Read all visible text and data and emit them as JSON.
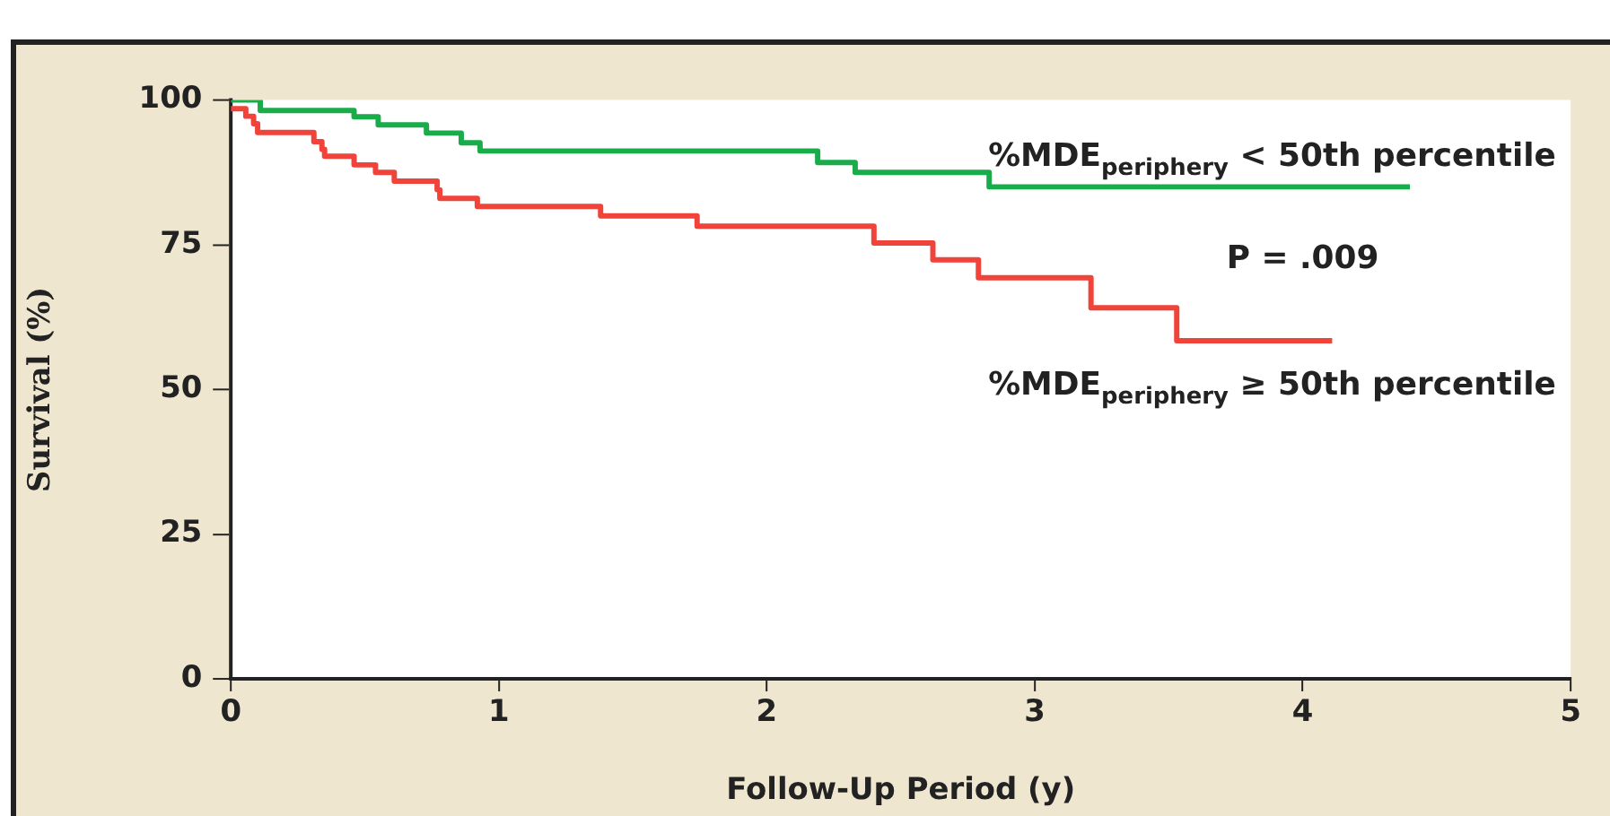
{
  "chart_data": {
    "type": "step",
    "xlabel": "Follow-Up Period (y)",
    "ylabel": "Survival (%)",
    "xlim": [
      0,
      5
    ],
    "xticks": [
      0,
      1,
      2,
      3,
      4,
      5
    ],
    "ylim": [
      0,
      100
    ],
    "yticks": [
      0,
      25,
      50,
      75,
      100
    ],
    "grid": false,
    "legend": false,
    "marker": "none",
    "line_style": "solid",
    "series": [
      {
        "name": "%MDE$_{periphery}$ < 50th percentile",
        "color": "#1aab4a",
        "x": [
          0,
          0.11,
          0.46,
          0.55,
          0.73,
          0.86,
          0.93,
          2.19,
          2.33,
          2.83,
          4.4
        ],
        "values": [
          100,
          98.2,
          97.1,
          95.7,
          94.3,
          92.6,
          91.2,
          89.2,
          87.5,
          85.0,
          85.0
        ]
      },
      {
        "name": "%MDE$_{periphery}$ ≥ 50th percentile",
        "color": "#f0433a",
        "x": [
          0,
          0.056,
          0.085,
          0.1,
          0.31,
          0.34,
          0.35,
          0.46,
          0.54,
          0.61,
          0.77,
          0.78,
          0.92,
          1.38,
          1.74,
          2.4,
          2.62,
          2.79,
          3.21,
          3.53,
          4.11
        ],
        "values": [
          98.5,
          97.2,
          95.9,
          94.4,
          92.8,
          91.5,
          90.3,
          88.8,
          87.5,
          86.0,
          84.5,
          83.0,
          81.6,
          80.0,
          78.2,
          75.3,
          72.4,
          69.3,
          64.1,
          58.4,
          58.4
        ]
      }
    ],
    "annotations": [
      "P = .009"
    ]
  }
}
